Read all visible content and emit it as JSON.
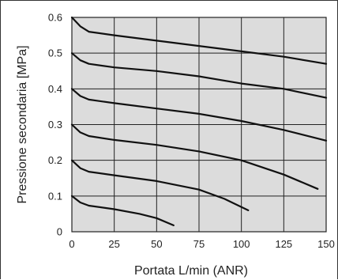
{
  "chart_data": {
    "type": "line",
    "title": "",
    "xlabel": "Portata L/min (ANR)",
    "ylabel": "Pressione secondaria [MPa]",
    "xlim": [
      0,
      150
    ],
    "ylim": [
      0,
      0.6
    ],
    "x_ticks": [
      "0",
      "25",
      "50",
      "75",
      "100",
      "125",
      "150"
    ],
    "y_ticks": [
      "0",
      "0.1",
      "0.2",
      "0.3",
      "0.4",
      "0.5",
      "0.6"
    ],
    "grid": true,
    "legend": "none",
    "colors": {
      "plot_background": "#dcdcdc",
      "grid": "#222222",
      "line": "#111111"
    },
    "series": [
      {
        "x": [
          0,
          5,
          10,
          25,
          50,
          75,
          100,
          125,
          150
        ],
        "y": [
          0.6,
          0.575,
          0.56,
          0.55,
          0.535,
          0.52,
          0.505,
          0.49,
          0.47
        ]
      },
      {
        "x": [
          0,
          5,
          10,
          25,
          50,
          75,
          100,
          125,
          150
        ],
        "y": [
          0.5,
          0.48,
          0.47,
          0.46,
          0.45,
          0.435,
          0.415,
          0.4,
          0.375
        ]
      },
      {
        "x": [
          0,
          5,
          10,
          25,
          50,
          75,
          100,
          125,
          150
        ],
        "y": [
          0.4,
          0.38,
          0.37,
          0.36,
          0.345,
          0.33,
          0.31,
          0.285,
          0.255
        ]
      },
      {
        "x": [
          0,
          5,
          10,
          25,
          50,
          75,
          100,
          125,
          145
        ],
        "y": [
          0.3,
          0.278,
          0.268,
          0.257,
          0.243,
          0.225,
          0.2,
          0.16,
          0.12
        ]
      },
      {
        "x": [
          0,
          5,
          10,
          25,
          50,
          75,
          90,
          104
        ],
        "y": [
          0.2,
          0.178,
          0.168,
          0.158,
          0.142,
          0.118,
          0.092,
          0.06
        ]
      },
      {
        "x": [
          0,
          5,
          10,
          25,
          40,
          50,
          60
        ],
        "y": [
          0.1,
          0.082,
          0.073,
          0.063,
          0.05,
          0.038,
          0.018
        ]
      }
    ]
  }
}
